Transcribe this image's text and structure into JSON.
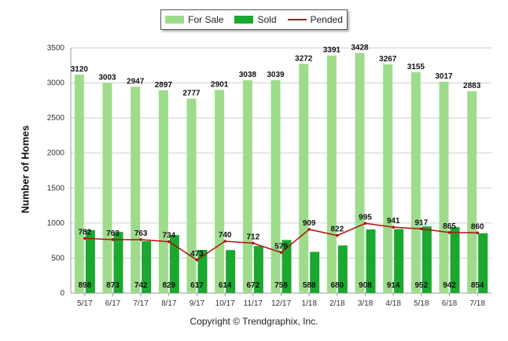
{
  "chart_data": {
    "type": "bar",
    "categories": [
      "5/17",
      "6/17",
      "7/17",
      "8/17",
      "9/17",
      "10/17",
      "11/17",
      "12/17",
      "1/18",
      "2/18",
      "3/18",
      "4/18",
      "5/18",
      "6/18",
      "7/18"
    ],
    "series": [
      {
        "name": "For Sale",
        "type": "bar",
        "color": "#9edc8c",
        "values": [
          3120,
          3003,
          2947,
          2897,
          2777,
          2901,
          3038,
          3039,
          3272,
          3391,
          3428,
          3267,
          3155,
          3017,
          2883
        ]
      },
      {
        "name": "Sold",
        "type": "bar",
        "color": "#1aa82f",
        "values": [
          898,
          873,
          742,
          829,
          617,
          614,
          672,
          758,
          588,
          680,
          908,
          914,
          952,
          942,
          854
        ]
      },
      {
        "name": "Pended",
        "type": "line",
        "color": "#b01010",
        "values": [
          782,
          763,
          763,
          734,
          473,
          740,
          712,
          579,
          909,
          822,
          995,
          941,
          917,
          865,
          860
        ]
      }
    ],
    "ylabel": "Number of Homes",
    "xlabel": "",
    "ylim": [
      0,
      3500
    ],
    "yticks": [
      0,
      500,
      1000,
      1500,
      2000,
      2500,
      3000,
      3500
    ],
    "grid": true,
    "legend_position": "top-center"
  },
  "footer": {
    "copyright": "Copyright © Trendgraphix, Inc."
  }
}
